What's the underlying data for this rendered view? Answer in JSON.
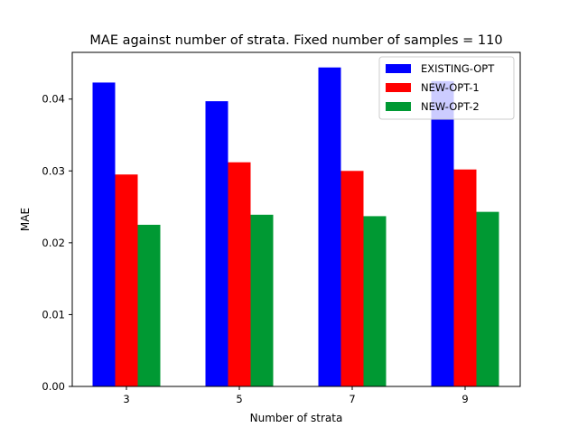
{
  "chart_data": {
    "type": "bar",
    "title": "MAE against number of strata. Fixed number of samples = 110",
    "xlabel": "Number of strata",
    "ylabel": "MAE",
    "categories": [
      "3",
      "5",
      "7",
      "9"
    ],
    "ylim": [
      0,
      0.0465
    ],
    "yticks": [
      "0.00",
      "0.01",
      "0.02",
      "0.03",
      "0.04"
    ],
    "ytick_values": [
      0,
      0.01,
      0.02,
      0.03,
      0.04
    ],
    "grid": false,
    "legend_position": "top-right",
    "series": [
      {
        "name": "EXISTING-OPT",
        "color": "#0000ff",
        "values": [
          0.0423,
          0.0397,
          0.0444,
          0.0425
        ]
      },
      {
        "name": "NEW-OPT-1",
        "color": "#ff0000",
        "values": [
          0.0295,
          0.0312,
          0.03,
          0.0302
        ]
      },
      {
        "name": "NEW-OPT-2",
        "color": "#009933",
        "values": [
          0.0225,
          0.0239,
          0.0237,
          0.0243
        ]
      }
    ]
  }
}
